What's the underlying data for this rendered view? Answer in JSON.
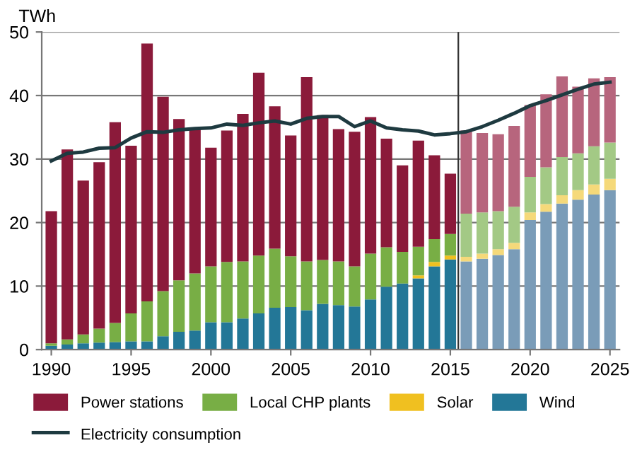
{
  "chart_data": {
    "type": "bar",
    "stacked": true,
    "ylabel": "TWh",
    "x": [
      1990,
      1991,
      1992,
      1993,
      1994,
      1995,
      1996,
      1997,
      1998,
      1999,
      2000,
      2001,
      2002,
      2003,
      2004,
      2005,
      2006,
      2007,
      2008,
      2009,
      2010,
      2011,
      2012,
      2013,
      2014,
      2015,
      2016,
      2017,
      2018,
      2019,
      2020,
      2021,
      2022,
      2023,
      2024,
      2025
    ],
    "xlim": [
      1989.4,
      2025.6
    ],
    "xticks": [
      1990,
      1995,
      2000,
      2005,
      2010,
      2015,
      2020,
      2025
    ],
    "ylim": [
      0,
      50
    ],
    "yticks": [
      0,
      10,
      20,
      30,
      40,
      50
    ],
    "grid": "y",
    "legend": "bottom",
    "ref_lines": [
      {
        "axis": "x",
        "value": 2015.5,
        "color": "#333333"
      }
    ],
    "series": [
      {
        "name": "Wind",
        "color": "#237797",
        "colors": [
          "#237797",
          "#237797",
          "#237797",
          "#237797",
          "#237797",
          "#237797",
          "#237797",
          "#237797",
          "#237797",
          "#237797",
          "#237797",
          "#237797",
          "#237797",
          "#237797",
          "#237797",
          "#237797",
          "#237797",
          "#237797",
          "#237797",
          "#237797",
          "#237797",
          "#237797",
          "#237797",
          "#237797",
          "#237797",
          "#237797",
          "#7a9cb8",
          "#7a9cb8",
          "#7a9cb8",
          "#7a9cb8",
          "#7a9cb8",
          "#7a9cb8",
          "#7a9cb8",
          "#7a9cb8",
          "#7a9cb8",
          "#7a9cb8"
        ],
        "values": [
          0.6,
          0.8,
          1.0,
          1.1,
          1.2,
          1.3,
          1.3,
          2.1,
          2.8,
          3.0,
          4.3,
          4.3,
          4.9,
          5.7,
          6.6,
          6.7,
          6.2,
          7.2,
          7.0,
          6.8,
          7.9,
          9.9,
          10.4,
          11.2,
          13.1,
          14.2,
          13.9,
          14.3,
          14.9,
          15.8,
          20.4,
          21.7,
          23.0,
          23.6,
          24.4,
          25.1
        ]
      },
      {
        "name": "Solar",
        "color": "#f0c020",
        "colors": [
          "#f0c020",
          "#f0c020",
          "#f0c020",
          "#f0c020",
          "#f0c020",
          "#f0c020",
          "#f0c020",
          "#f0c020",
          "#f0c020",
          "#f0c020",
          "#f0c020",
          "#f0c020",
          "#f0c020",
          "#f0c020",
          "#f0c020",
          "#f0c020",
          "#f0c020",
          "#f0c020",
          "#f0c020",
          "#f0c020",
          "#f0c020",
          "#f0c020",
          "#f0c020",
          "#f0c020",
          "#f0c020",
          "#f0c020",
          "#f5d97a",
          "#f5d97a",
          "#f5d97a",
          "#f5d97a",
          "#f5d97a",
          "#f5d97a",
          "#f5d97a",
          "#f5d97a",
          "#f5d97a",
          "#f5d97a"
        ],
        "values": [
          0,
          0,
          0,
          0,
          0,
          0,
          0,
          0,
          0,
          0,
          0,
          0,
          0,
          0,
          0,
          0,
          0,
          0,
          0,
          0,
          0,
          0,
          0,
          0.5,
          0.7,
          0.6,
          0.7,
          0.8,
          0.9,
          1.0,
          1.2,
          1.2,
          1.3,
          1.5,
          1.6,
          1.8
        ]
      },
      {
        "name": "Local CHP plants",
        "color": "#78ae45",
        "colors": [
          "#78ae45",
          "#78ae45",
          "#78ae45",
          "#78ae45",
          "#78ae45",
          "#78ae45",
          "#78ae45",
          "#78ae45",
          "#78ae45",
          "#78ae45",
          "#78ae45",
          "#78ae45",
          "#78ae45",
          "#78ae45",
          "#78ae45",
          "#78ae45",
          "#78ae45",
          "#78ae45",
          "#78ae45",
          "#78ae45",
          "#78ae45",
          "#78ae45",
          "#78ae45",
          "#78ae45",
          "#78ae45",
          "#78ae45",
          "#a3c985",
          "#a3c985",
          "#a3c985",
          "#a3c985",
          "#a3c985",
          "#a3c985",
          "#a3c985",
          "#a3c985",
          "#a3c985",
          "#a3c985"
        ],
        "values": [
          0.4,
          0.8,
          1.4,
          2.2,
          3.0,
          4.4,
          6.3,
          7.1,
          8.1,
          9.0,
          8.8,
          9.5,
          9.0,
          9.1,
          9.3,
          8.0,
          7.7,
          6.9,
          6.9,
          6.3,
          7.2,
          6.2,
          5.0,
          4.5,
          3.6,
          3.4,
          6.8,
          6.5,
          6.0,
          5.7,
          5.6,
          5.8,
          6.0,
          5.8,
          6.0,
          5.7
        ]
      },
      {
        "name": "Power stations",
        "color": "#8b1a3a",
        "colors": [
          "#8b1a3a",
          "#8b1a3a",
          "#8b1a3a",
          "#8b1a3a",
          "#8b1a3a",
          "#8b1a3a",
          "#8b1a3a",
          "#8b1a3a",
          "#8b1a3a",
          "#8b1a3a",
          "#8b1a3a",
          "#8b1a3a",
          "#8b1a3a",
          "#8b1a3a",
          "#8b1a3a",
          "#8b1a3a",
          "#8b1a3a",
          "#8b1a3a",
          "#8b1a3a",
          "#8b1a3a",
          "#8b1a3a",
          "#8b1a3a",
          "#8b1a3a",
          "#8b1a3a",
          "#8b1a3a",
          "#8b1a3a",
          "#b7657d",
          "#b7657d",
          "#b7657d",
          "#b7657d",
          "#b7657d",
          "#b7657d",
          "#b7657d",
          "#b7657d",
          "#b7657d",
          "#b7657d"
        ],
        "values": [
          20.8,
          29.9,
          24.2,
          26.2,
          31.6,
          26.4,
          40.6,
          30.6,
          25.4,
          22.8,
          18.7,
          20.7,
          23.2,
          28.8,
          22.4,
          19.0,
          29.0,
          22.8,
          20.8,
          21.2,
          21.5,
          17.1,
          13.6,
          16.7,
          13.2,
          9.5,
          13.1,
          12.5,
          12.1,
          12.7,
          11.3,
          11.5,
          12.7,
          10.5,
          10.7,
          10.3
        ]
      },
      {
        "name": "Electricity consumption",
        "type": "line",
        "color": "#1e3a40",
        "values": [
          29.7,
          30.9,
          31.1,
          31.7,
          31.8,
          33.3,
          34.3,
          34.2,
          34.6,
          34.8,
          34.9,
          35.5,
          35.3,
          35.7,
          36.0,
          35.5,
          36.4,
          36.7,
          36.7,
          35.1,
          36.0,
          34.9,
          34.6,
          34.4,
          33.8,
          34.0,
          34.3,
          35.1,
          36.1,
          37.2,
          38.4,
          39.2,
          40.1,
          41.0,
          41.8,
          42.1
        ]
      }
    ]
  }
}
